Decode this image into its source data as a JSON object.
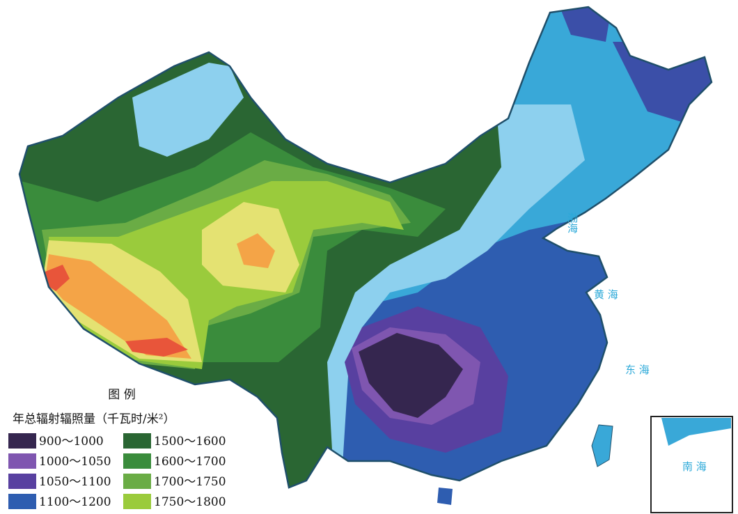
{
  "legend": {
    "title": "图 例",
    "subtitle": "年总辐射辐照量（千瓦时/米²）",
    "items": [
      {
        "label": "900～1000",
        "color": "#35264f"
      },
      {
        "label": "1000～1050",
        "color": "#7f56b0"
      },
      {
        "label": "1050～1100",
        "color": "#5840a0"
      },
      {
        "label": "1100～1200",
        "color": "#2e5db0"
      },
      {
        "label": "1500～1600",
        "color": "#2a6633"
      },
      {
        "label": "1600～1700",
        "color": "#3a8c3c"
      },
      {
        "label": "1700～1750",
        "color": "#6aac45"
      },
      {
        "label": "1750～1800",
        "color": "#9acb3c"
      }
    ]
  },
  "sea_labels": [
    "渤海",
    "黄 海",
    "东 海",
    "南 海"
  ]
}
